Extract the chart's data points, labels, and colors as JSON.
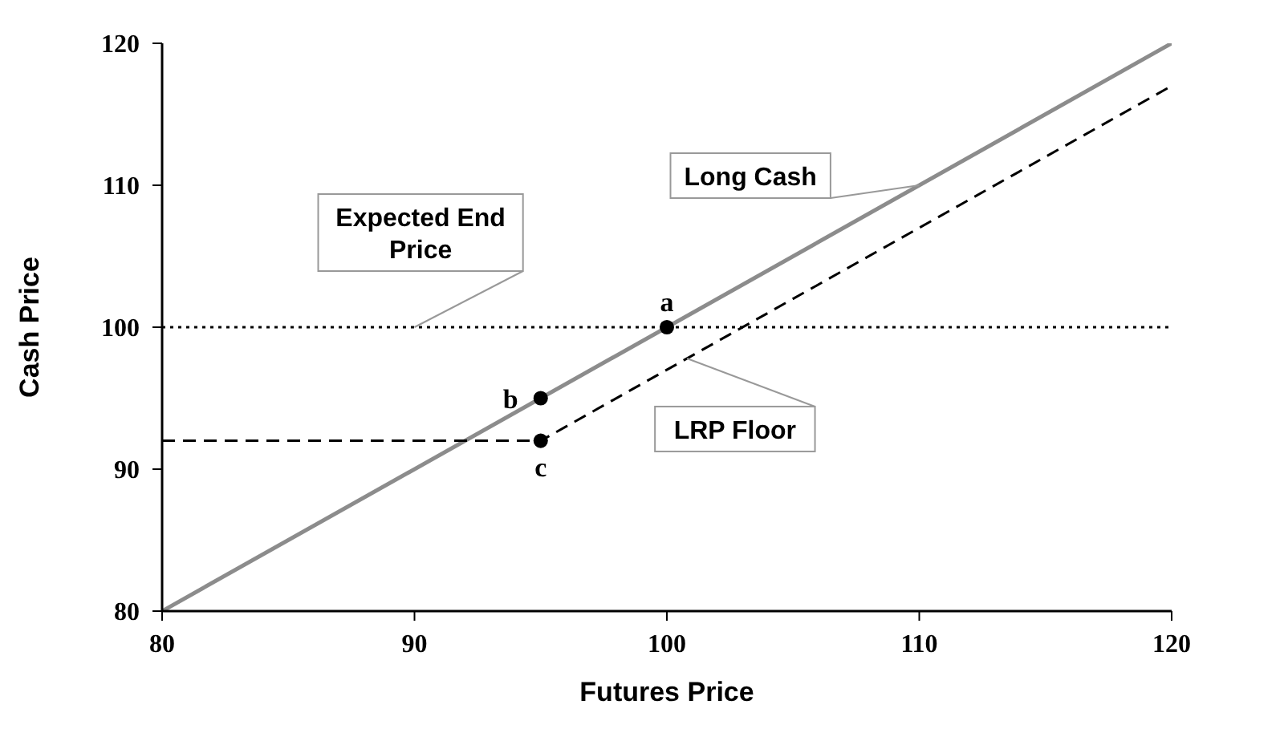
{
  "chart_data": {
    "type": "line",
    "xlabel": "Futures Price",
    "ylabel": "Cash Price",
    "xlim": [
      80,
      120
    ],
    "ylim": [
      80,
      120
    ],
    "xticks": [
      80,
      90,
      100,
      110,
      120
    ],
    "yticks": [
      80,
      90,
      100,
      110,
      120
    ],
    "grid": false,
    "series": [
      {
        "name": "Long Cash",
        "color": "#8c8c8c",
        "line_style": "solid",
        "marker": "none",
        "x": [
          80,
          120
        ],
        "values": [
          80,
          120
        ]
      },
      {
        "name": "LRP Floor",
        "color": "#000000",
        "line_style": "dashed",
        "marker": "none",
        "x": [
          80,
          95,
          120
        ],
        "values": [
          92,
          92,
          117
        ]
      },
      {
        "type": "scatter",
        "color": "#000000",
        "marker": "circle",
        "x": [
          100,
          95,
          95
        ],
        "values": [
          100,
          95,
          92
        ]
      }
    ],
    "ref_lines": [
      {
        "axis": "y",
        "value": 100,
        "label": "Expected End Price",
        "color": "#000000",
        "line_style": "dotted"
      }
    ],
    "annotations": [
      "a",
      "b",
      "c"
    ]
  }
}
